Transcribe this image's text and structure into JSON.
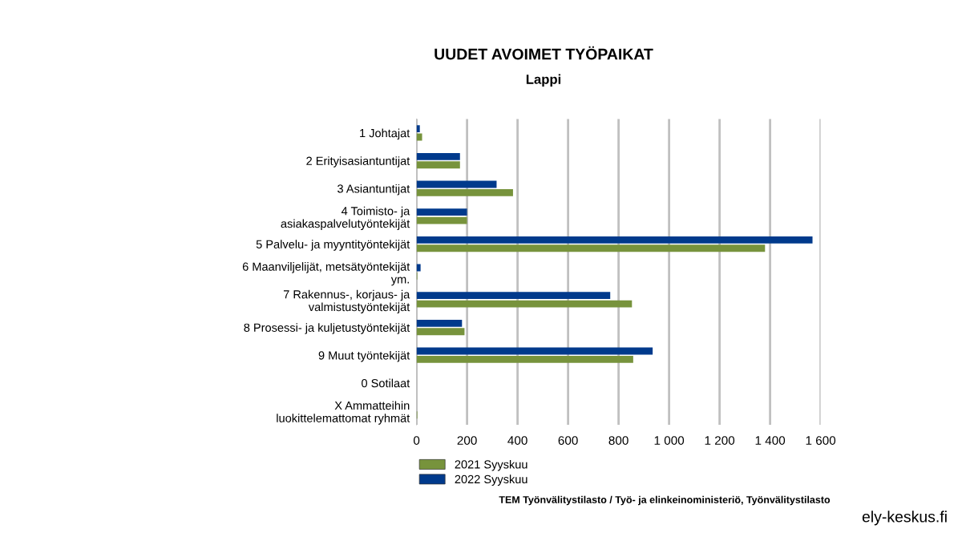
{
  "chart_data": {
    "type": "bar",
    "orientation": "horizontal",
    "title": "UUDET AVOIMET TYÖPAIKAT",
    "subtitle": "Lappi",
    "categories": [
      "1 Johtajat",
      "2 Erityisasiantuntijat",
      "3 Asiantuntijat",
      "4 Toimisto- ja\nasiakaspalvelutyöntekijät",
      "5 Palvelu- ja myyntityöntekijät",
      "6 Maanviljelijät, metsätyöntekijät\nym.",
      "7 Rakennus-, korjaus- ja\nvalmistustyöntekijät",
      "8 Prosessi- ja kuljetustyöntekijät",
      "9 Muut työntekijät",
      "0 Sotilaat",
      "X Ammatteihin\nluokittelemattomat ryhmät"
    ],
    "series": [
      {
        "name": "2021 Syyskuu",
        "color": "#77933c",
        "values": [
          22,
          172,
          382,
          200,
          1380,
          3,
          853,
          190,
          858,
          null,
          3
        ]
      },
      {
        "name": "2022 Syyskuu",
        "color": "#003a8c",
        "values": [
          13,
          172,
          317,
          200,
          1568,
          16,
          767,
          180,
          935,
          null,
          null
        ]
      }
    ],
    "xlim": [
      0,
      1600
    ],
    "xticks": [
      0,
      {
        "value": 200,
        "label": "200"
      },
      {
        "value": 400,
        "label": "400"
      },
      {
        "value": 600,
        "label": "600"
      },
      {
        "value": 800,
        "label": "800"
      },
      {
        "value": 1000,
        "label": "1 000"
      },
      {
        "value": 1200,
        "label": "1 200"
      },
      {
        "value": 1400,
        "label": "1 400"
      },
      {
        "value": 1600,
        "label": "1 600"
      }
    ],
    "grid": "x",
    "legend": "bottom left",
    "annotations": [
      "TEM Työnvälitystilasto / Työ- ja elinkeinoministeriö, Työnvälitystilasto",
      "ely-keskus.fi"
    ]
  }
}
